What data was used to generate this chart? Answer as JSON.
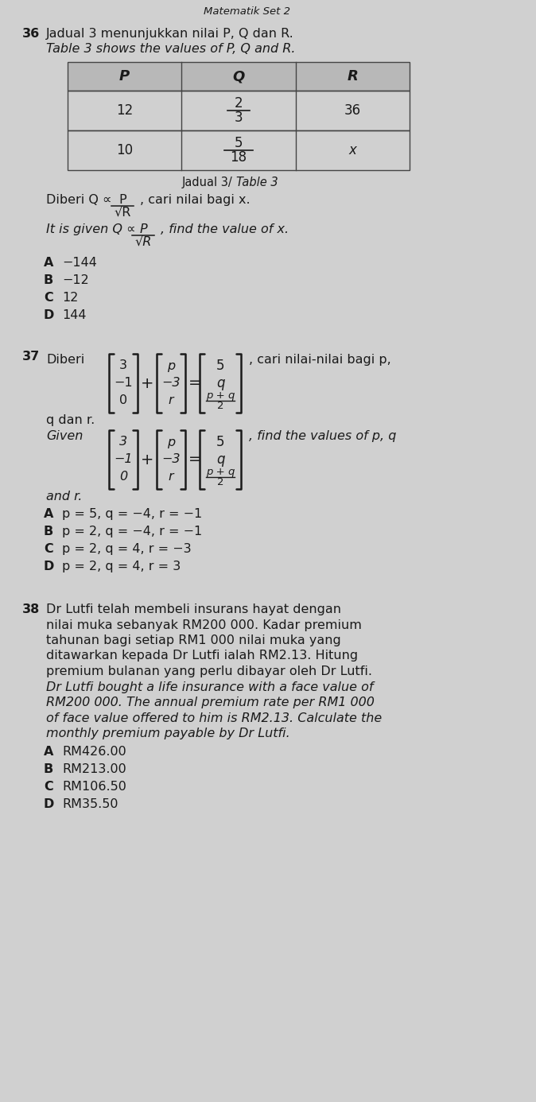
{
  "bg_color": "#d0d0d0",
  "text_color": "#1a1a1a",
  "page_width": 6.74,
  "page_height": 13.86,
  "header_text": "Matematik Set 2",
  "q36_malay": "Jadual 3 menunjukkan nilai P, Q dan R.",
  "q36_english": "Table 3 shows the values of P, Q and R.",
  "table_headers": [
    "P",
    "Q",
    "R"
  ],
  "table_row1_p": "12",
  "table_row1_q_num": "2",
  "table_row1_q_den": "3",
  "table_row1_r": "36",
  "table_row2_p": "10",
  "table_row2_q_num": "5",
  "table_row2_q_den": "18",
  "table_row2_r": "x",
  "q36_options": [
    [
      "A",
      "−144"
    ],
    [
      "B",
      "−12"
    ],
    [
      "C",
      "12"
    ],
    [
      "D",
      "144"
    ]
  ],
  "q37_options": [
    [
      "A",
      "p = 5, q = −4, r = −1"
    ],
    [
      "B",
      "p = 2, q = −4, r = −1"
    ],
    [
      "C",
      "p = 2, q = 4, r = −3"
    ],
    [
      "D",
      "p = 2, q = 4, r = 3"
    ]
  ],
  "q38_malay_lines": [
    "Dr Lutfi telah membeli insurans hayat dengan",
    "nilai muka sebanyak RM200 000. Kadar premium",
    "tahunan bagi setiap RM1 000 nilai muka yang",
    "ditawarkan kepada Dr Lutfi ialah RM2.13. Hitung",
    "premium bulanan yang perlu dibayar oleh Dr Lutfi."
  ],
  "q38_english_lines": [
    "Dr Lutfi bought a life insurance with a face value of",
    "RM200 000. The annual premium rate per RM1 000",
    "of face value offered to him is RM2.13. Calculate the",
    "monthly premium payable by Dr Lutfi."
  ],
  "q38_options": [
    [
      "A",
      "RM426.00"
    ],
    [
      "B",
      "RM213.00"
    ],
    [
      "C",
      "RM106.50"
    ],
    [
      "D",
      "RM35.50"
    ]
  ]
}
